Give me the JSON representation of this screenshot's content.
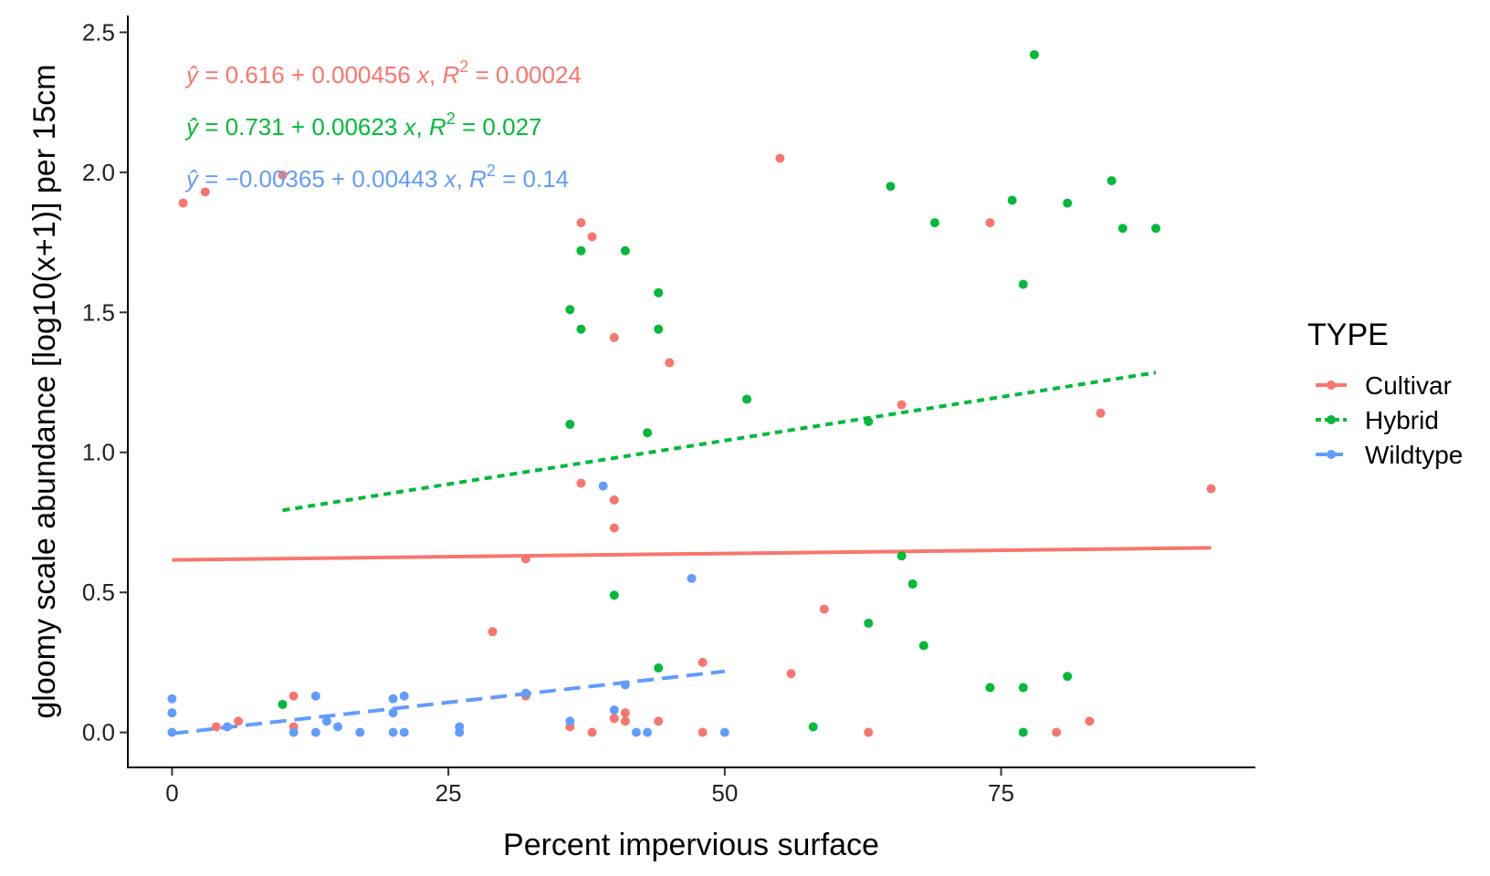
{
  "chart_data": {
    "type": "scatter",
    "xlabel": "Percent impervious surface",
    "ylabel": "gloomy scale abundance [log10(x+1)] per 15cm",
    "xlim": [
      -4,
      98
    ],
    "ylim": [
      -0.125,
      2.56
    ],
    "x_ticks": [
      0,
      25,
      50,
      75
    ],
    "x_tick_labels": [
      "0",
      "25",
      "50",
      "75"
    ],
    "y_ticks": [
      0.0,
      0.5,
      1.0,
      1.5,
      2.0,
      2.5
    ],
    "y_tick_labels": [
      "0.0",
      "0.5",
      "1.0",
      "1.5",
      "2.0",
      "2.5"
    ],
    "grid": false,
    "legend": {
      "title": "TYPE",
      "position": "right",
      "entries": [
        "Cultivar",
        "Hybrid",
        "Wildtype"
      ]
    },
    "series": [
      {
        "name": "Cultivar",
        "color": "#F8766D",
        "line_style": "solid",
        "fit_line": {
          "x": [
            0,
            94
          ],
          "y": [
            0.616,
            0.659
          ]
        },
        "annotation": {
          "yhat": "ŷ",
          "lhs": " = 0.616 + 0.000456 ",
          "x": "x",
          "sep": ", ",
          "r": "R",
          "sup": "2",
          "rhs": " = 0.00024"
        },
        "points": [
          {
            "x": 1,
            "y": 1.89
          },
          {
            "x": 3,
            "y": 1.93
          },
          {
            "x": 10,
            "y": 1.99
          },
          {
            "x": 4,
            "y": 0.02
          },
          {
            "x": 6,
            "y": 0.04
          },
          {
            "x": 11,
            "y": 0.13
          },
          {
            "x": 11,
            "y": 0.02
          },
          {
            "x": 29,
            "y": 0.36
          },
          {
            "x": 32,
            "y": 0.62
          },
          {
            "x": 32,
            "y": 0.13
          },
          {
            "x": 36,
            "y": 0.02
          },
          {
            "x": 37,
            "y": 1.82
          },
          {
            "x": 38,
            "y": 1.77
          },
          {
            "x": 37,
            "y": 0.89
          },
          {
            "x": 38,
            "y": 0.0
          },
          {
            "x": 40,
            "y": 1.41
          },
          {
            "x": 40,
            "y": 0.83
          },
          {
            "x": 40,
            "y": 0.73
          },
          {
            "x": 40,
            "y": 0.05
          },
          {
            "x": 41,
            "y": 0.07
          },
          {
            "x": 41,
            "y": 0.04
          },
          {
            "x": 44,
            "y": 0.04
          },
          {
            "x": 45,
            "y": 1.32
          },
          {
            "x": 48,
            "y": 0.25
          },
          {
            "x": 48,
            "y": 0.0
          },
          {
            "x": 55,
            "y": 2.05
          },
          {
            "x": 56,
            "y": 0.21
          },
          {
            "x": 59,
            "y": 0.44
          },
          {
            "x": 63,
            "y": 0.0
          },
          {
            "x": 66,
            "y": 1.17
          },
          {
            "x": 74,
            "y": 1.82
          },
          {
            "x": 80,
            "y": 0.0
          },
          {
            "x": 83,
            "y": 0.04
          },
          {
            "x": 84,
            "y": 1.14
          },
          {
            "x": 94,
            "y": 0.87
          }
        ]
      },
      {
        "name": "Hybrid",
        "color": "#00BA38",
        "line_style": "dotted",
        "fit_line": {
          "x": [
            10,
            89
          ],
          "y": [
            0.793,
            1.285
          ]
        },
        "annotation": {
          "yhat": "ŷ",
          "lhs": " = 0.731 + 0.00623 ",
          "x": "x",
          "sep": ", ",
          "r": "R",
          "sup": "2",
          "rhs": " = 0.027"
        },
        "points": [
          {
            "x": 10,
            "y": 0.1
          },
          {
            "x": 36,
            "y": 1.51
          },
          {
            "x": 37,
            "y": 1.72
          },
          {
            "x": 37,
            "y": 1.44
          },
          {
            "x": 36,
            "y": 1.1
          },
          {
            "x": 40,
            "y": 0.49
          },
          {
            "x": 41,
            "y": 1.72
          },
          {
            "x": 43,
            "y": 1.07
          },
          {
            "x": 44,
            "y": 1.57
          },
          {
            "x": 44,
            "y": 1.44
          },
          {
            "x": 44,
            "y": 0.23
          },
          {
            "x": 52,
            "y": 1.19
          },
          {
            "x": 58,
            "y": 0.02
          },
          {
            "x": 63,
            "y": 1.11
          },
          {
            "x": 63,
            "y": 0.39
          },
          {
            "x": 65,
            "y": 1.95
          },
          {
            "x": 66,
            "y": 0.63
          },
          {
            "x": 67,
            "y": 0.53
          },
          {
            "x": 68,
            "y": 0.31
          },
          {
            "x": 69,
            "y": 1.82
          },
          {
            "x": 74,
            "y": 0.16
          },
          {
            "x": 76,
            "y": 1.9
          },
          {
            "x": 77,
            "y": 1.6
          },
          {
            "x": 77,
            "y": 0.16
          },
          {
            "x": 77,
            "y": 0.0
          },
          {
            "x": 78,
            "y": 2.42
          },
          {
            "x": 81,
            "y": 1.89
          },
          {
            "x": 81,
            "y": 0.2
          },
          {
            "x": 85,
            "y": 1.97
          },
          {
            "x": 86,
            "y": 1.8
          },
          {
            "x": 89,
            "y": 1.8
          }
        ]
      },
      {
        "name": "Wildtype",
        "color": "#619CFF",
        "line_style": "dashed",
        "fit_line": {
          "x": [
            0,
            50
          ],
          "y": [
            -0.004,
            0.218
          ]
        },
        "annotation": {
          "yhat": "ŷ",
          "lhs": " = −0.00365 + 0.00443 ",
          "x": "x",
          "sep": ", ",
          "r": "R",
          "sup": "2",
          "rhs": " = 0.14"
        },
        "points": [
          {
            "x": 0,
            "y": 0.12
          },
          {
            "x": 0,
            "y": 0.07
          },
          {
            "x": 0,
            "y": 0.0
          },
          {
            "x": 5,
            "y": 0.02
          },
          {
            "x": 11,
            "y": 0.0
          },
          {
            "x": 13,
            "y": 0.13
          },
          {
            "x": 13,
            "y": 0.0
          },
          {
            "x": 14,
            "y": 0.04
          },
          {
            "x": 15,
            "y": 0.02
          },
          {
            "x": 17,
            "y": 0.0
          },
          {
            "x": 20,
            "y": 0.12
          },
          {
            "x": 20,
            "y": 0.07
          },
          {
            "x": 20,
            "y": 0.0
          },
          {
            "x": 21,
            "y": 0.13
          },
          {
            "x": 21,
            "y": 0.0
          },
          {
            "x": 26,
            "y": 0.02
          },
          {
            "x": 26,
            "y": 0.0
          },
          {
            "x": 32,
            "y": 0.14
          },
          {
            "x": 36,
            "y": 0.04
          },
          {
            "x": 39,
            "y": 0.88
          },
          {
            "x": 40,
            "y": 0.08
          },
          {
            "x": 41,
            "y": 0.17
          },
          {
            "x": 42,
            "y": 0.0
          },
          {
            "x": 43,
            "y": 0.0
          },
          {
            "x": 47,
            "y": 0.55
          },
          {
            "x": 50,
            "y": 0.0
          }
        ]
      }
    ]
  }
}
